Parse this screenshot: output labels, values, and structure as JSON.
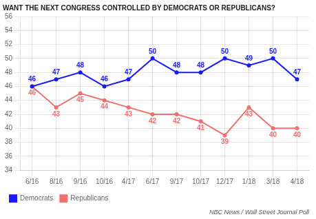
{
  "chart_data": {
    "type": "line",
    "title": "WANT THE NEXT CONGRESS CONTROLLED BY DEMOCRATS OR REPUBLICANS?",
    "categories": [
      "6/16",
      "8/16",
      "9/16",
      "10/16",
      "4/17",
      "6/17",
      "9/17",
      "10/17",
      "12/17",
      "1/18",
      "3/18",
      "4/18"
    ],
    "series": [
      {
        "name": "Democrats",
        "color": "#1a1aff",
        "values": [
          46,
          47,
          48,
          46,
          47,
          50,
          48,
          48,
          50,
          49,
          50,
          47
        ]
      },
      {
        "name": "Republicans",
        "color": "#f07070",
        "values": [
          46,
          43,
          45,
          44,
          43,
          42,
          42,
          41,
          39,
          43,
          40,
          40
        ]
      }
    ],
    "ylim": [
      34,
      56
    ],
    "yticks": [
      34,
      36,
      38,
      40,
      42,
      44,
      46,
      48,
      50,
      52,
      54,
      56
    ],
    "grid": true,
    "legend": "bottom",
    "data_labels": true,
    "annotations": [
      "NBC News / Wall Street Journal Poll"
    ]
  }
}
